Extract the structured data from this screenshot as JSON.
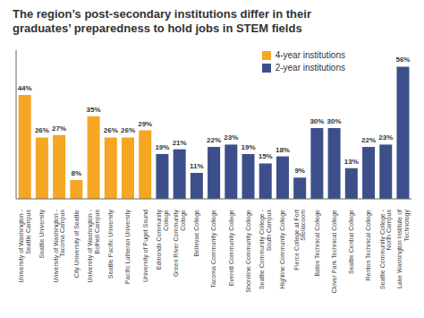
{
  "chart_data": {
    "type": "bar",
    "title": "The region’s post-secondary institutions differ in their\ngraduates’ preparedness to hold jobs in STEM fields",
    "categories": [
      "University of Washington -\nSeattle Campus",
      "Seattle University",
      "University of Washington -\nTacoma Campus",
      "City University of Seattle",
      "University of Washington -\nBothell Campus",
      "Seattle Pacific University",
      "Pacific Lutheran University",
      "University of Puget Sound",
      "Edmonds Community\nCollege",
      "Green River Community\nCollege",
      "Bellevue College",
      "Tacoma Community College",
      "Everett Community College",
      "Shoreline Community College",
      "Seattle Community College -\nSouth Campus",
      "Highline Community College",
      "Pierce College at Fort\nSteilacoom",
      "Bates Technical College",
      "Clover Park Technical College",
      "Seattle Central College",
      "Renton Technical College",
      "Seattle Community College -\nNorth Campus",
      "Lake Washington Institute of\nTechnology"
    ],
    "series": [
      {
        "name": "4-year institutions",
        "color": "#f5a623",
        "values": [
          44,
          26,
          27,
          8,
          35,
          26,
          26,
          29,
          null,
          null,
          null,
          null,
          null,
          null,
          null,
          null,
          null,
          null,
          null,
          null,
          null,
          null,
          null
        ],
        "value_labels": [
          "44%",
          "26%",
          "27%",
          "8%",
          "35%",
          "26%",
          "26%",
          "29%",
          null,
          null,
          null,
          null,
          null,
          null,
          null,
          null,
          null,
          null,
          null,
          null,
          null,
          null,
          null
        ]
      },
      {
        "name": "2-year institutions",
        "color": "#3d4f8a",
        "values": [
          null,
          null,
          null,
          null,
          null,
          null,
          null,
          null,
          19,
          21,
          11,
          22,
          23,
          19,
          15,
          18,
          9,
          30,
          30,
          13,
          22,
          23,
          56
        ],
        "value_labels": [
          null,
          null,
          null,
          null,
          null,
          null,
          null,
          null,
          "19%",
          "21%",
          "11%",
          "22%",
          "23%",
          "19%",
          "15%",
          "18%",
          "9%",
          "30%",
          "30%",
          "13%",
          "22%",
          "23%",
          "56%"
        ]
      }
    ],
    "ylim": [
      0,
      63
    ],
    "stacked": true,
    "data_labels": true,
    "tick_labels": "x",
    "legend": "upper right"
  }
}
